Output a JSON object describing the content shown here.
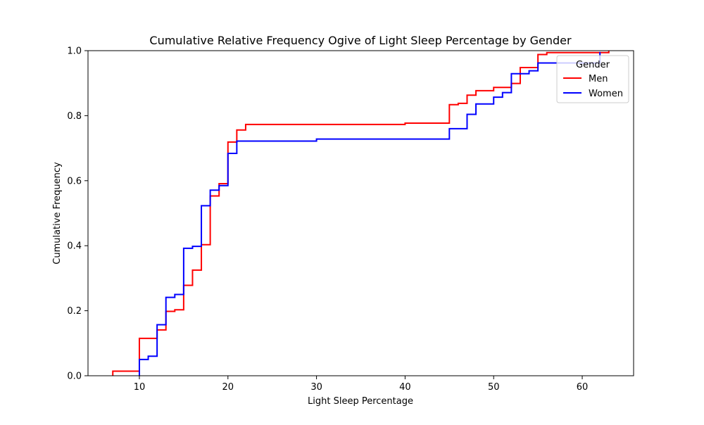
{
  "chart_data": {
    "type": "line",
    "step": true,
    "title": "Cumulative Relative Frequency Ogive of Light Sleep Percentage by Gender",
    "xlabel": "Light Sleep Percentage",
    "ylabel": "Cumulative Frequency",
    "xlim": [
      4.2,
      65.8
    ],
    "ylim": [
      0,
      1.0
    ],
    "xticks": [
      10,
      20,
      30,
      40,
      50,
      60
    ],
    "xtick_labels": [
      "10",
      "20",
      "30",
      "40",
      "50",
      "60"
    ],
    "yticks": [
      0,
      0.2,
      0.4,
      0.6,
      0.8,
      1.0
    ],
    "ytick_labels": [
      "0.0",
      "0.2",
      "0.4",
      "0.6",
      "0.8",
      "1.0"
    ],
    "grid": false,
    "legend": {
      "title": "Gender",
      "placement": "top-right"
    },
    "series": [
      {
        "name": "Men",
        "color": "#ff0000",
        "x": [
          7,
          10,
          12,
          13,
          14,
          15,
          16,
          17,
          18,
          19,
          20,
          21,
          22,
          40,
          45,
          46,
          47,
          48,
          50,
          52,
          53,
          55,
          56,
          63
        ],
        "y": [
          0.014,
          0.115,
          0.141,
          0.198,
          0.203,
          0.278,
          0.325,
          0.403,
          0.553,
          0.591,
          0.719,
          0.756,
          0.773,
          0.777,
          0.834,
          0.838,
          0.863,
          0.877,
          0.887,
          0.899,
          0.948,
          0.988,
          0.994,
          1.0
        ]
      },
      {
        "name": "Women",
        "color": "#0000ff",
        "x": [
          10,
          11,
          12,
          13,
          14,
          15,
          16,
          17,
          18,
          19,
          20,
          21,
          30,
          45,
          47,
          48,
          50,
          51,
          52,
          54,
          55,
          62
        ],
        "y": [
          0.05,
          0.06,
          0.157,
          0.241,
          0.25,
          0.392,
          0.398,
          0.523,
          0.571,
          0.585,
          0.684,
          0.722,
          0.728,
          0.76,
          0.804,
          0.836,
          0.857,
          0.871,
          0.929,
          0.938,
          0.962,
          0.996
        ]
      }
    ]
  }
}
